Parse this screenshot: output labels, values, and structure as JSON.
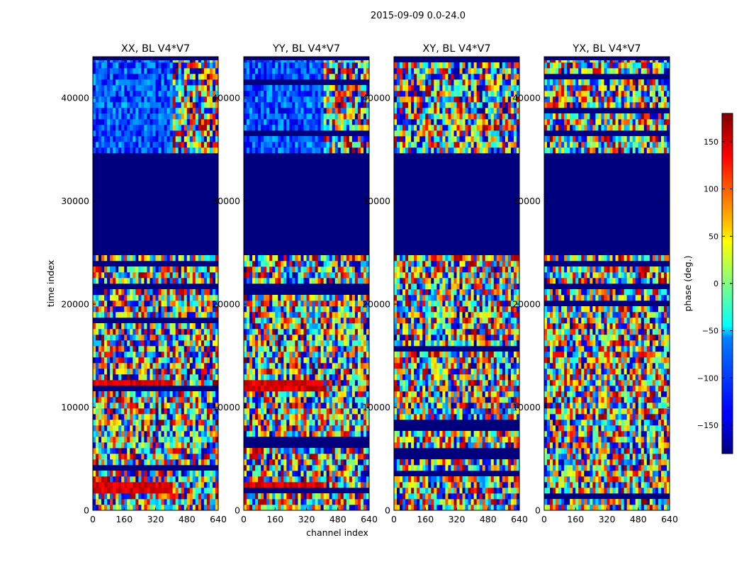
{
  "figure": {
    "suptitle": "2015-09-09 0.0-24.0",
    "xlabel": "channel index",
    "ylabel": "time index"
  },
  "chart_data": {
    "type": "heatmap",
    "title": "2015-09-09 0.0-24.0",
    "xlabel": "channel index",
    "ylabel": "time index",
    "xlim": [
      0,
      640
    ],
    "ylim": [
      0,
      44000
    ],
    "x_ticks": [
      "0",
      "160",
      "320",
      "480",
      "640"
    ],
    "y_ticks": [
      "0",
      "10000",
      "20000",
      "30000",
      "40000"
    ],
    "panels": [
      {
        "title": "XX, BL V4*V7",
        "polarization": "XX",
        "baseline": "V4*V7",
        "low_phase_band": [
          34800,
          44000
        ],
        "flagged_region": [
          25000,
          34800
        ],
        "red_bands": [
          [
            11500,
            12500
          ],
          [
            1800,
            2700
          ]
        ],
        "fringe_start_channel": 410
      },
      {
        "title": "YY, BL V4*V7",
        "polarization": "YY",
        "baseline": "V4*V7",
        "low_phase_band": [
          34800,
          44000
        ],
        "flagged_region": [
          25000,
          34800
        ],
        "red_bands": [
          [
            11500,
            12500
          ],
          [
            1800,
            2700
          ]
        ],
        "fringe_start_channel": 410
      },
      {
        "title": "XY, BL V4*V7",
        "polarization": "XY",
        "baseline": "V4*V7",
        "low_phase_band": null,
        "flagged_region": [
          25000,
          34800
        ],
        "red_bands": [],
        "fringe_start_channel": null
      },
      {
        "title": "YX, BL V4*V7",
        "polarization": "YX",
        "baseline": "V4*V7",
        "low_phase_band": null,
        "flagged_region": [
          25000,
          34800
        ],
        "red_bands": [],
        "fringe_start_channel": null
      }
    ],
    "colorbar": {
      "label": "phase (deg.)",
      "range": [
        -180,
        180
      ],
      "ticks": [
        -150,
        -100,
        -50,
        0,
        50,
        100,
        150
      ],
      "tick_labels": [
        "−150",
        "−100",
        "−50",
        "0",
        "50",
        "100",
        "150"
      ],
      "colormap": "jet"
    }
  },
  "colors": {
    "jet_dark_blue": "#00007f",
    "jet_blue": "#0000ff",
    "jet_cyan": "#00ffff",
    "jet_yellow": "#ffff00",
    "jet_red": "#ff0000",
    "jet_dark_red": "#7f0000"
  }
}
